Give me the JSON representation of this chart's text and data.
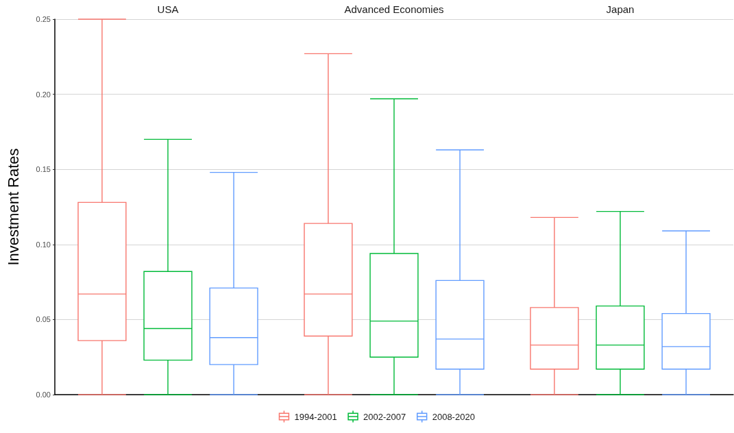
{
  "chart_data": {
    "type": "box",
    "ylabel": "Investment Rates",
    "categories": [
      "USA",
      "Advanced Economies",
      "Japan"
    ],
    "series": [
      {
        "name": "1994-2001",
        "color": "#f8766d",
        "boxes": [
          {
            "low": 0,
            "q1": 0.036,
            "median": 0.067,
            "q3": 0.128,
            "high": 0.25
          },
          {
            "low": 0,
            "q1": 0.039,
            "median": 0.067,
            "q3": 0.114,
            "high": 0.227
          },
          {
            "low": 0,
            "q1": 0.017,
            "median": 0.033,
            "q3": 0.058,
            "high": 0.118
          }
        ]
      },
      {
        "name": "2002-2007",
        "color": "#00ba38",
        "boxes": [
          {
            "low": 0,
            "q1": 0.023,
            "median": 0.044,
            "q3": 0.082,
            "high": 0.17
          },
          {
            "low": 0,
            "q1": 0.025,
            "median": 0.049,
            "q3": 0.094,
            "high": 0.197
          },
          {
            "low": 0,
            "q1": 0.017,
            "median": 0.033,
            "q3": 0.059,
            "high": 0.122
          }
        ]
      },
      {
        "name": "2008-2020",
        "color": "#619cff",
        "boxes": [
          {
            "low": 0,
            "q1": 0.02,
            "median": 0.038,
            "q3": 0.071,
            "high": 0.148
          },
          {
            "low": 0,
            "q1": 0.017,
            "median": 0.037,
            "q3": 0.076,
            "high": 0.163
          },
          {
            "low": 0,
            "q1": 0.017,
            "median": 0.032,
            "q3": 0.054,
            "high": 0.109
          }
        ]
      }
    ],
    "ylim": [
      0,
      0.25
    ],
    "yticks": [
      {
        "value": 0,
        "label": "0.00"
      },
      {
        "value": 0.05,
        "label": "0.05"
      },
      {
        "value": 0.1,
        "label": "0.10"
      },
      {
        "value": 0.15,
        "label": "0.15"
      },
      {
        "value": 0.2,
        "label": "0.20"
      },
      {
        "value": 0.25,
        "label": "0.25"
      }
    ],
    "grid": "y",
    "legend": "bottom"
  }
}
